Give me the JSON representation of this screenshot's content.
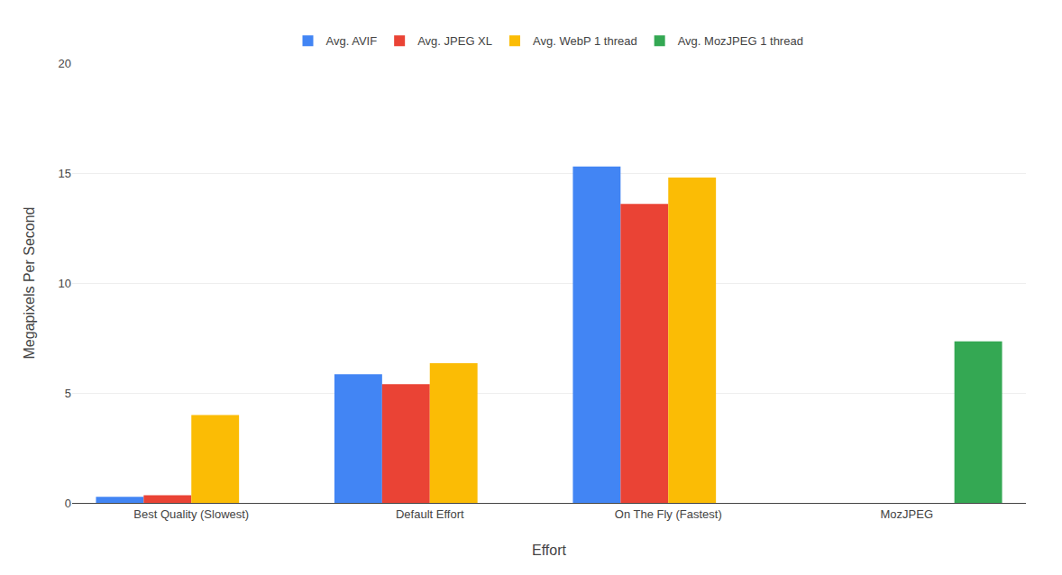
{
  "chart_data": {
    "type": "bar",
    "categories": [
      "Best Quality (Slowest)",
      "Default Effort",
      "On The Fly (Fastest)",
      "MozJPEG"
    ],
    "series": [
      {
        "name": "Avg. AVIF",
        "color": "#4285F4",
        "values": [
          0.28,
          5.85,
          15.3,
          0.0
        ]
      },
      {
        "name": "Avg. JPEG XL",
        "color": "#EA4335",
        "values": [
          0.35,
          5.4,
          13.6,
          0.0
        ]
      },
      {
        "name": "Avg. WebP 1 thread",
        "color": "#FBBC05",
        "values": [
          4.0,
          6.35,
          14.8,
          0.0
        ]
      },
      {
        "name": "Avg. MozJPEG 1 thread",
        "color": "#34A853",
        "values": [
          0.0,
          0.0,
          0.0,
          7.35
        ]
      }
    ],
    "xlabel": "Effort",
    "ylabel": "Megapixels Per Second",
    "ylim": [
      0,
      20
    ],
    "yticks": [
      0,
      5,
      10,
      15,
      20
    ],
    "grid": true,
    "legend": "top"
  }
}
